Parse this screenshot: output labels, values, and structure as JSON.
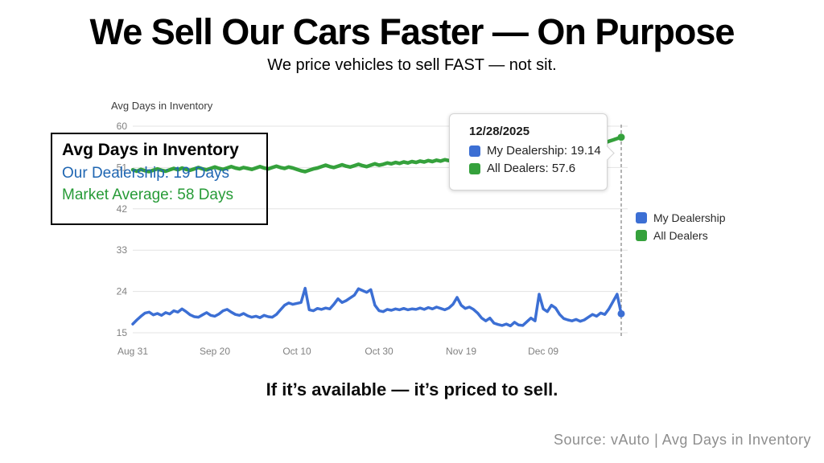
{
  "slide": {
    "title": "We Sell Our Cars Faster — On Purpose",
    "subtitle": "We price vehicles to sell FAST — not sit.",
    "caption": "If it’s available — it’s priced to sell.",
    "source": "Source: vAuto | Avg Days in Inventory"
  },
  "annotation": {
    "title": "Avg Days in Inventory",
    "line1": "Our Dealership: 19 Days",
    "line2": "Market Average: 58 Days",
    "line1_color": "#1f66b2",
    "line2_color": "#279b37"
  },
  "tooltip": {
    "date": "12/28/2025",
    "rows": [
      {
        "label": "My Dealership: 19.14",
        "color": "#3c6fd4"
      },
      {
        "label": "All Dealers: 57.6",
        "color": "#35a13c"
      }
    ]
  },
  "legend": {
    "items": [
      {
        "label": "My Dealership",
        "color": "#3c6fd4"
      },
      {
        "label": "All Dealers",
        "color": "#35a13c"
      }
    ]
  },
  "chart_data": {
    "type": "line",
    "title": "Avg Days in Inventory",
    "ylabel": "",
    "xlabel": "",
    "ylim": [
      15,
      60
    ],
    "yticks": [
      15,
      24,
      33,
      42,
      51,
      60
    ],
    "x_days": 119,
    "xticks": [
      {
        "day": 0,
        "label": "Aug 31"
      },
      {
        "day": 20,
        "label": "Sep 20"
      },
      {
        "day": 40,
        "label": "Oct 10"
      },
      {
        "day": 60,
        "label": "Oct 30"
      },
      {
        "day": 80,
        "label": "Nov 19"
      },
      {
        "day": 100,
        "label": "Dec 09"
      }
    ],
    "grid": true,
    "legend_position": "right",
    "highlight": {
      "day": 119,
      "date": "12/28/2025",
      "my_dealership": 19.14,
      "all_dealers": 57.6
    },
    "series": [
      {
        "name": "My Dealership",
        "color": "#3c6fd4",
        "values": [
          16.9,
          17.8,
          18.6,
          19.3,
          19.5,
          18.9,
          19.2,
          18.8,
          19.4,
          19.1,
          19.8,
          19.5,
          20.2,
          19.6,
          18.9,
          18.5,
          18.4,
          18.9,
          19.4,
          18.8,
          18.6,
          19.1,
          19.8,
          20.1,
          19.5,
          19.0,
          18.8,
          19.2,
          18.7,
          18.4,
          18.6,
          18.3,
          18.8,
          18.5,
          18.4,
          19.0,
          20.0,
          21.0,
          21.5,
          21.2,
          21.4,
          21.6,
          24.7,
          20.0,
          19.8,
          20.3,
          20.1,
          20.4,
          20.2,
          21.2,
          22.4,
          21.6,
          22.0,
          22.6,
          23.2,
          24.6,
          24.2,
          23.8,
          24.4,
          21.0,
          19.8,
          19.6,
          20.1,
          19.9,
          20.2,
          20.0,
          20.3,
          20.0,
          20.2,
          20.1,
          20.4,
          20.1,
          20.5,
          20.2,
          20.6,
          20.3,
          20.0,
          20.4,
          21.2,
          22.7,
          21.0,
          20.3,
          20.6,
          20.1,
          19.3,
          18.2,
          17.6,
          18.2,
          17.1,
          16.8,
          16.6,
          16.9,
          16.5,
          17.3,
          16.7,
          16.6,
          17.4,
          18.2,
          17.6,
          23.4,
          20.2,
          19.6,
          21.0,
          20.4,
          19.0,
          18.1,
          17.8,
          17.6,
          17.9,
          17.5,
          17.8,
          18.4,
          19.0,
          18.6,
          19.3,
          19.0,
          20.2,
          21.8,
          23.4,
          19.14
        ]
      },
      {
        "name": "All Dealers",
        "color": "#35a13c",
        "values": [
          50.5,
          50.2,
          50.6,
          50.3,
          50.1,
          50.4,
          50.7,
          50.4,
          50.2,
          50.5,
          50.8,
          50.5,
          50.9,
          50.6,
          50.4,
          50.7,
          51.0,
          50.7,
          50.5,
          50.8,
          51.1,
          50.8,
          50.6,
          50.9,
          51.2,
          50.9,
          50.7,
          51.0,
          50.8,
          50.6,
          50.9,
          51.2,
          50.9,
          50.7,
          51.0,
          51.3,
          51.0,
          50.8,
          51.1,
          50.9,
          50.6,
          50.3,
          50.1,
          50.4,
          50.7,
          50.9,
          51.2,
          51.5,
          51.2,
          51.0,
          51.3,
          51.6,
          51.3,
          51.1,
          51.4,
          51.7,
          51.4,
          51.2,
          51.5,
          51.8,
          51.5,
          51.7,
          52.0,
          51.8,
          52.1,
          51.9,
          52.2,
          52.0,
          52.3,
          52.1,
          52.4,
          52.2,
          52.5,
          52.3,
          52.6,
          52.4,
          52.7,
          52.5,
          52.8,
          52.6,
          52.9,
          53.1,
          52.9,
          53.2,
          53.0,
          53.3,
          53.1,
          53.4,
          53.2,
          53.5,
          53.3,
          53.6,
          53.8,
          53.6,
          53.9,
          53.7,
          54.0,
          53.8,
          54.1,
          54.3,
          54.1,
          54.4,
          54.2,
          54.5,
          54.3,
          54.6,
          54.4,
          54.7,
          54.9,
          55.1,
          55.0,
          55.3,
          55.5,
          55.8,
          56.1,
          56.4,
          56.7,
          57.0,
          57.3,
          57.6
        ]
      }
    ]
  }
}
